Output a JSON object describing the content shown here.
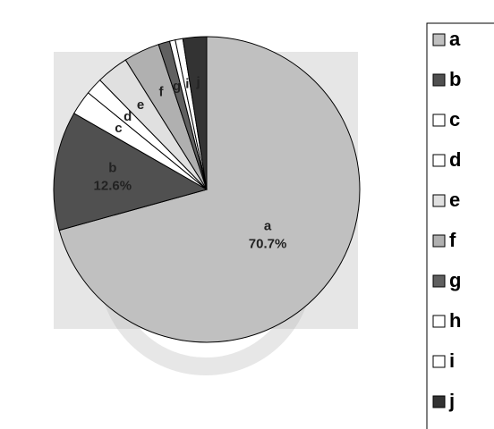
{
  "chart_data": {
    "type": "pie",
    "categories": [
      "a",
      "b",
      "c",
      "d",
      "e",
      "f",
      "g",
      "h",
      "i",
      "j"
    ],
    "values": [
      70.7,
      12.6,
      2.6,
      1.8,
      3.4,
      3.8,
      1.2,
      0.6,
      0.8,
      2.5
    ],
    "value_labels": [
      "70.7%",
      "12.6%",
      null,
      null,
      null,
      null,
      null,
      null,
      null,
      null
    ],
    "colors": [
      "#c0c0c0",
      "#505050",
      "#ffffff",
      "#ffffff",
      "#e0e0e0",
      "#b0b0b0",
      "#606060",
      "#ffffff",
      "#ffffff",
      "#333333"
    ],
    "legend": "right"
  }
}
